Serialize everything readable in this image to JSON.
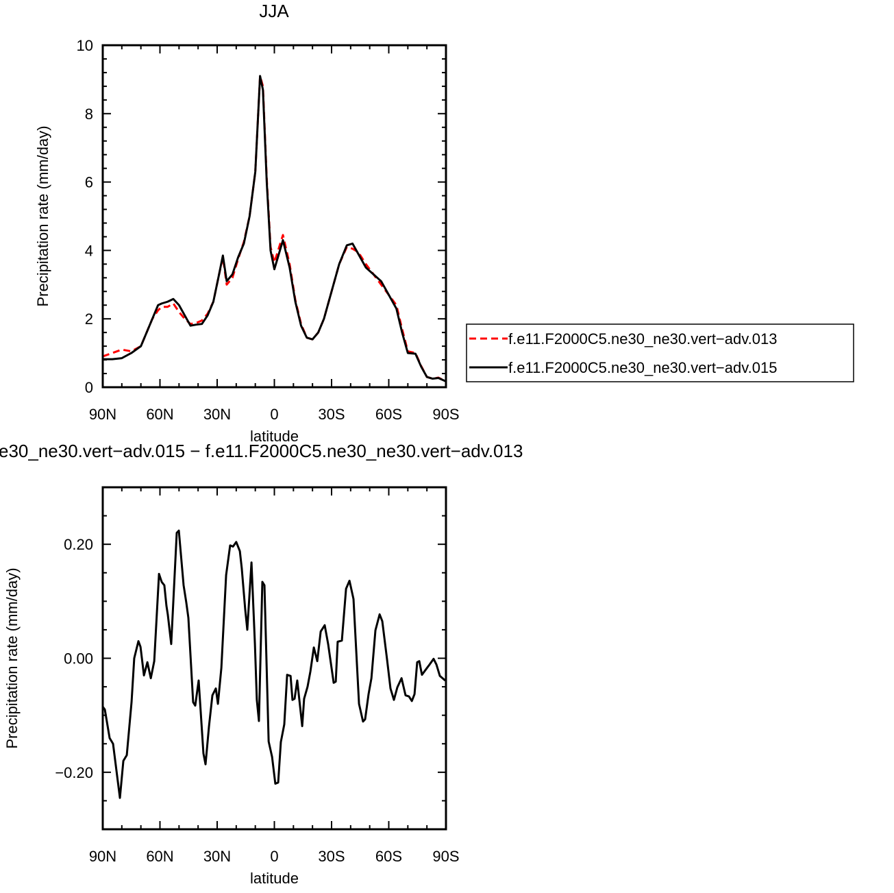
{
  "chart_data": [
    {
      "type": "line",
      "title": "JJA",
      "xlabel": "latitude",
      "ylabel": "Precipitation rate (mm/day)",
      "x": [
        90,
        85,
        80,
        75,
        70,
        67,
        64,
        61,
        59,
        56,
        53,
        50,
        47,
        44,
        41,
        38,
        35,
        32,
        29,
        27,
        25,
        22,
        19,
        16,
        13,
        10,
        7.5,
        6,
        4,
        2,
        0,
        -4.5,
        -8,
        -11,
        -14,
        -17,
        -20,
        -23,
        -26,
        -30,
        -34,
        -38,
        -41,
        -44,
        -48,
        -52,
        -56,
        -60,
        -64,
        -67,
        -70,
        -74,
        -77,
        -80,
        -83,
        -86,
        -90
      ],
      "series": [
        {
          "name": "f.e11.F2000C5.ne30_ne30.vert−adv.013",
          "color": "#ff0000",
          "linestyle": "dashed",
          "values": [
            0.9,
            1.0,
            1.1,
            1.05,
            1.2,
            1.6,
            2.0,
            2.25,
            2.35,
            2.35,
            2.45,
            2.2,
            2.0,
            1.85,
            1.88,
            1.95,
            2.15,
            2.5,
            3.3,
            3.8,
            3.0,
            3.2,
            3.75,
            4.25,
            5.0,
            6.3,
            9.1,
            8.8,
            6.1,
            4.1,
            3.65,
            4.45,
            3.6,
            2.55,
            1.85,
            1.45,
            1.4,
            1.6,
            2.0,
            2.8,
            3.6,
            4.1,
            4.05,
            3.95,
            3.6,
            3.3,
            3.0,
            2.7,
            2.4,
            1.7,
            1.05,
            1.0,
            0.62,
            0.3,
            0.25,
            0.28,
            0.17
          ]
        },
        {
          "name": "f.e11.F2000C5.ne30_ne30.vert−adv.015",
          "color": "#000000",
          "linestyle": "solid",
          "values": [
            0.82,
            0.82,
            0.85,
            1.0,
            1.2,
            1.6,
            2.0,
            2.4,
            2.45,
            2.5,
            2.58,
            2.4,
            2.1,
            1.8,
            1.83,
            1.85,
            2.1,
            2.5,
            3.3,
            3.85,
            3.1,
            3.3,
            3.8,
            4.2,
            5.0,
            6.3,
            9.1,
            8.7,
            6.0,
            4.0,
            3.45,
            4.3,
            3.5,
            2.5,
            1.8,
            1.45,
            1.4,
            1.6,
            2.0,
            2.8,
            3.6,
            4.15,
            4.2,
            3.9,
            3.5,
            3.3,
            3.1,
            2.7,
            2.3,
            1.6,
            1.0,
            0.98,
            0.6,
            0.3,
            0.25,
            0.27,
            0.17
          ]
        }
      ],
      "xlim": [
        90,
        -90
      ],
      "xticks": [
        {
          "value": 90,
          "label": "90N"
        },
        {
          "value": 60,
          "label": "60N"
        },
        {
          "value": 30,
          "label": "30N"
        },
        0,
        {
          "value": -30,
          "label": "30S"
        },
        {
          "value": -60,
          "label": "60S"
        },
        {
          "value": -90,
          "label": "90S"
        }
      ],
      "xminorticks": [
        80,
        70,
        50,
        40,
        20,
        10,
        -10,
        -20,
        -40,
        -50,
        -70,
        -80
      ],
      "ylim": [
        0,
        10
      ],
      "yticks": [
        0,
        2,
        4,
        6,
        8,
        10
      ],
      "yminorticks": [
        0.4,
        0.8,
        1.2,
        1.6,
        2.4,
        2.8,
        3.2,
        3.6,
        4.4,
        4.8,
        5.2,
        5.6,
        6.4,
        6.8,
        7.2,
        7.6,
        8.4,
        8.8,
        9.2,
        9.6
      ],
      "legend": "right"
    },
    {
      "type": "line",
      "title": "e30_ne30.vert−adv.015 − f.e11.F2000C5.ne30_ne30.vert−adv.013",
      "xlabel": "latitude",
      "ylabel": "Precipitation rate (mm/day)",
      "x": [
        90,
        88.9,
        86.4,
        84.6,
        81,
        79.2,
        77.4,
        74.9,
        73.5,
        71.3,
        70.2,
        68.4,
        66.6,
        64.8,
        63,
        60.5,
        59.1,
        57.7,
        56.6,
        55.9,
        54.1,
        51.2,
        50.1,
        47.6,
        46.2,
        45.1,
        42.6,
        41.5,
        39.7,
        37.2,
        36.1,
        34.3,
        32.5,
        30.7,
        29.6,
        27.8,
        25.3,
        23.2,
        21.7,
        20,
        18.1,
        17.1,
        15.3,
        14.2,
        12,
        10.2,
        9.2,
        8.1,
        6.3,
        5.2,
        3,
        1.2,
        -0.5,
        -2,
        -3.4,
        -5.2,
        -6.7,
        -8.5,
        -9.5,
        -10.6,
        -12,
        -14.6,
        -15.6,
        -17.4,
        -18.9,
        -20.7,
        -22.5,
        -24.3,
        -26.4,
        -28.2,
        -31.1,
        -32.2,
        -33.2,
        -35.4,
        -37.6,
        -39.4,
        -41.5,
        -44.4,
        -46.5,
        -47.6,
        -49.4,
        -50.9,
        -53,
        -55.2,
        -56.6,
        -59.1,
        -60.9,
        -62.7,
        -64.5,
        -66.7,
        -68.8,
        -70.6,
        -72.1,
        -73.5,
        -74.9,
        -76,
        -77.4,
        -79.6,
        -81.4,
        -83.5,
        -85,
        -86.8,
        -89.6
      ],
      "series": [
        {
          "color": "#000000",
          "linestyle": "solid",
          "values": [
            -0.085,
            -0.09,
            -0.14,
            -0.15,
            -0.245,
            -0.18,
            -0.17,
            -0.077,
            0.0,
            0.03,
            0.02,
            -0.03,
            -0.007,
            -0.035,
            -0.005,
            0.148,
            0.134,
            0.128,
            0.092,
            0.077,
            0.025,
            0.22,
            0.224,
            0.128,
            0.098,
            0.071,
            -0.077,
            -0.083,
            -0.039,
            -0.167,
            -0.186,
            -0.12,
            -0.065,
            -0.053,
            -0.08,
            -0.017,
            0.146,
            0.198,
            0.196,
            0.204,
            0.188,
            0.158,
            0.086,
            0.05,
            0.168,
            0.025,
            -0.073,
            -0.11,
            0.134,
            0.128,
            -0.146,
            -0.173,
            -0.22,
            -0.218,
            -0.147,
            -0.116,
            -0.029,
            -0.031,
            -0.073,
            -0.071,
            -0.039,
            -0.119,
            -0.071,
            -0.05,
            -0.023,
            0.019,
            -0.005,
            0.047,
            0.058,
            0.025,
            -0.043,
            -0.041,
            0.029,
            0.031,
            0.122,
            0.136,
            0.104,
            -0.08,
            -0.111,
            -0.107,
            -0.063,
            -0.035,
            0.049,
            0.077,
            0.065,
            -0.002,
            -0.053,
            -0.073,
            -0.051,
            -0.035,
            -0.065,
            -0.067,
            -0.075,
            -0.063,
            -0.007,
            -0.005,
            -0.029,
            -0.019,
            -0.011,
            -0.001,
            -0.011,
            -0.031,
            -0.039
          ]
        }
      ],
      "xlim": [
        90,
        -90
      ],
      "xticks": [
        {
          "value": 90,
          "label": "90N"
        },
        {
          "value": 60,
          "label": "60N"
        },
        {
          "value": 30,
          "label": "30N"
        },
        0,
        {
          "value": -30,
          "label": "30S"
        },
        {
          "value": -60,
          "label": "60S"
        },
        {
          "value": -90,
          "label": "90S"
        }
      ],
      "xminorticks": [
        80,
        70,
        50,
        40,
        20,
        10,
        -10,
        -20,
        -40,
        -50,
        -70,
        -80
      ],
      "ylim": [
        -0.3,
        0.3
      ],
      "yticks": [
        {
          "value": -0.2,
          "label": "−0.20"
        },
        {
          "value": 0,
          "label": "0.00"
        },
        {
          "value": 0.2,
          "label": "0.20"
        }
      ],
      "yminorticks": [
        -0.25,
        -0.15,
        -0.1,
        -0.05,
        0.05,
        0.1,
        0.15,
        0.25
      ]
    }
  ]
}
